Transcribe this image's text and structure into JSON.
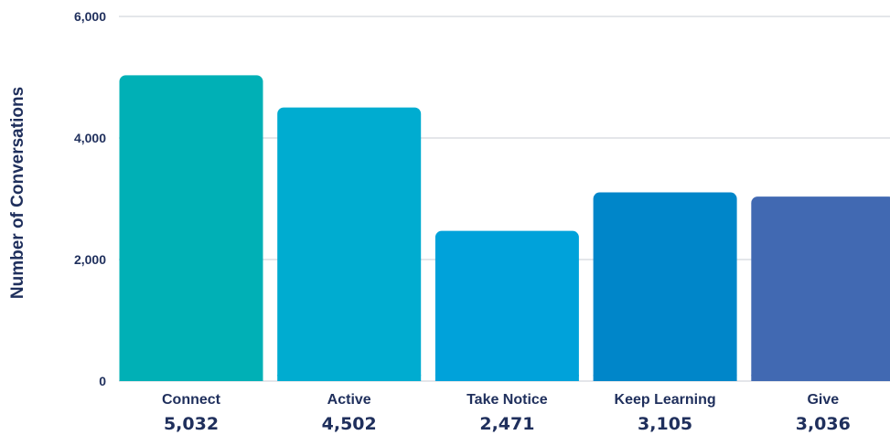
{
  "colors": {
    "text": "#1f2f5c",
    "grid": "#c8ccd4",
    "bars": [
      "#00b0b6",
      "#00acd0",
      "#00a2da",
      "#0086c9",
      "#4169b2"
    ]
  },
  "chart_data": {
    "type": "bar",
    "title": "",
    "xlabel": "",
    "ylabel": "Number of Conversations",
    "ylim": [
      0,
      6000
    ],
    "yticks": [
      {
        "value": 0,
        "label": "0"
      },
      {
        "value": 2000,
        "label": "2,000"
      },
      {
        "value": 4000,
        "label": "4,000"
      },
      {
        "value": 6000,
        "label": "6,000"
      }
    ],
    "grid": true,
    "legend": "none",
    "categories": [
      "Connect",
      "Active",
      "Take Notice",
      "Keep Learning",
      "Give"
    ],
    "values": [
      5032,
      4502,
      2471,
      3105,
      3036
    ],
    "value_labels": [
      "5,032",
      "4,502",
      "2,471",
      "3,105",
      "3,036"
    ]
  }
}
